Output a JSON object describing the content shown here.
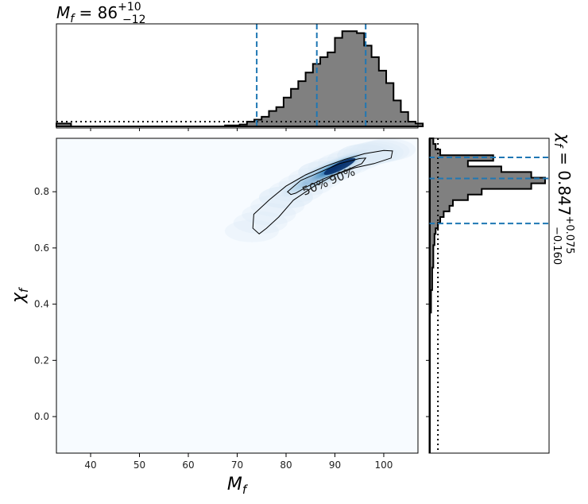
{
  "chart_data": {
    "type": "corner",
    "top_title": {
      "main": "M",
      "sub": "f",
      "eq": " = 86",
      "sup": "+10",
      "low": "−12"
    },
    "right_title": {
      "main": "χ",
      "sub": "f",
      "eq": " = 0.847",
      "sup": "+0.075",
      "low": "−0.160"
    },
    "xlabel": {
      "main": "M",
      "sub": "f"
    },
    "ylabel": {
      "main": "χ",
      "sub": "f"
    },
    "xlim": [
      33,
      107
    ],
    "ylim": [
      -0.13,
      0.99
    ],
    "xticks": [
      "40",
      "50",
      "60",
      "70",
      "80",
      "90",
      "100"
    ],
    "yticks": [
      "0.0",
      "0.2",
      "0.4",
      "0.6",
      "0.8"
    ],
    "contour_labels": [
      "50%",
      "90%"
    ],
    "colors": {
      "hist_fill": "#808080",
      "hist_edge": "#000000",
      "quantile": "#1f77b4",
      "density_max": "#08306b",
      "density_min": "#f7fbff"
    },
    "mass_quantiles": [
      74,
      86.3,
      96.3
    ],
    "spin_quantiles": [
      0.687,
      0.847,
      0.922
    ],
    "mass_hist": {
      "bin_edges_start": 33,
      "bin_width": 1.5,
      "counts": [
        0.03,
        0.03,
        0,
        0,
        0,
        0,
        0,
        0,
        0,
        0,
        0,
        0,
        0,
        0,
        0,
        0,
        0,
        0,
        0,
        0,
        0,
        0,
        0,
        0.01,
        0.01,
        0.02,
        0.05,
        0.07,
        0.1,
        0.16,
        0.2,
        0.3,
        0.39,
        0.47,
        0.56,
        0.65,
        0.72,
        0.77,
        0.92,
        0.99,
        0.99,
        0.97,
        0.84,
        0.72,
        0.58,
        0.45,
        0.27,
        0.15,
        0.05,
        0.03
      ]
    },
    "mass_prior": [
      0.05,
      0.05
    ],
    "spin_hist": {
      "bin_edges_start": 0.99,
      "bin_width": -0.02,
      "counts": [
        0.03,
        0.05,
        0.09,
        0.55,
        0.33,
        0.62,
        0.88,
        1.0,
        0.88,
        0.45,
        0.33,
        0.2,
        0.17,
        0.12,
        0.09,
        0.07,
        0.05,
        0.04,
        0.04,
        0.03,
        0.03,
        0.03,
        0.03,
        0.02,
        0.02,
        0.02,
        0.02,
        0.01,
        0.01,
        0.01,
        0.01,
        0,
        0,
        0,
        0,
        0,
        0,
        0,
        0,
        0,
        0,
        0,
        0,
        0,
        0,
        0,
        0,
        0,
        0,
        0,
        0,
        0,
        0,
        0,
        0,
        0
      ]
    },
    "spin_prior_x": 0.07,
    "density_ridge": [
      [
        73,
        0.66
      ],
      [
        80,
        0.78
      ],
      [
        88,
        0.87
      ],
      [
        96,
        0.93
      ],
      [
        101,
        0.95
      ]
    ],
    "density_peak": [
      90,
      0.885
    ],
    "contour_90": [
      [
        74.5,
        0.65
      ],
      [
        73.2,
        0.67
      ],
      [
        73.4,
        0.72
      ],
      [
        76.5,
        0.77
      ],
      [
        80,
        0.82
      ],
      [
        84,
        0.86
      ],
      [
        88,
        0.89
      ],
      [
        92,
        0.915
      ],
      [
        96,
        0.935
      ],
      [
        100,
        0.947
      ],
      [
        101.8,
        0.945
      ],
      [
        101.5,
        0.92
      ],
      [
        98,
        0.9
      ],
      [
        94,
        0.885
      ],
      [
        90,
        0.86
      ],
      [
        85.8,
        0.82
      ],
      [
        81.5,
        0.77
      ],
      [
        78.5,
        0.71
      ],
      [
        76,
        0.67
      ]
    ],
    "contour_50": [
      [
        81,
        0.79
      ],
      [
        80.3,
        0.8
      ],
      [
        83,
        0.84
      ],
      [
        87,
        0.87
      ],
      [
        91,
        0.9
      ],
      [
        95,
        0.918
      ],
      [
        96.3,
        0.92
      ],
      [
        95.5,
        0.9
      ],
      [
        92,
        0.875
      ],
      [
        88,
        0.848
      ],
      [
        84.5,
        0.82
      ],
      [
        82,
        0.795
      ]
    ]
  }
}
